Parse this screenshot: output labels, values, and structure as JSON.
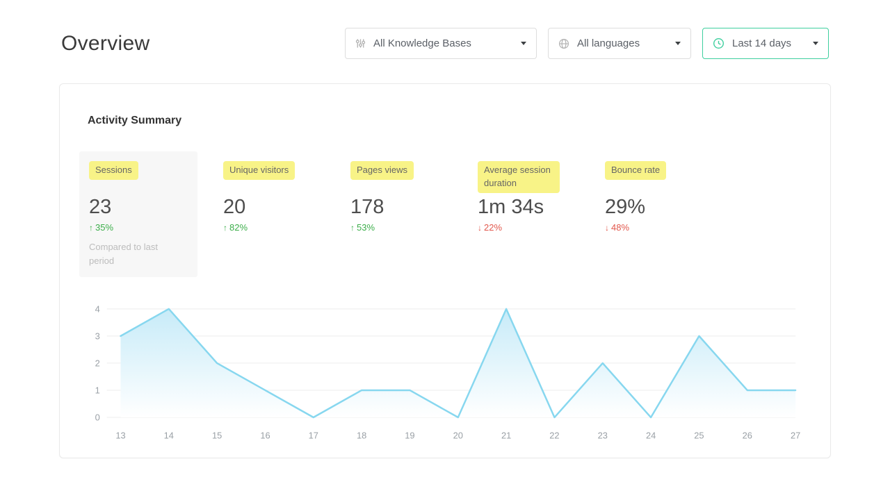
{
  "page": {
    "title": "Overview"
  },
  "filters": {
    "knowledge_bases": {
      "label": "All Knowledge Bases",
      "icon": "sliders-icon"
    },
    "languages": {
      "label": "All languages",
      "icon": "globe-icon"
    },
    "date_range": {
      "label": "Last 14 days",
      "icon": "clock-icon",
      "active": true
    }
  },
  "card": {
    "title": "Activity Summary"
  },
  "metrics": [
    {
      "label": "Sessions",
      "value": "23",
      "delta": "35%",
      "direction": "up",
      "note": "Compared to last period",
      "highlighted_tile": true
    },
    {
      "label": "Unique visitors",
      "value": "20",
      "delta": "82%",
      "direction": "up"
    },
    {
      "label": "Pages views",
      "value": "178",
      "delta": "53%",
      "direction": "up"
    },
    {
      "label": "Average session duration",
      "value": "1m 34s",
      "delta": "22%",
      "direction": "down"
    },
    {
      "label": "Bounce rate",
      "value": "29%",
      "delta": "48%",
      "direction": "down"
    }
  ],
  "chart_data": {
    "type": "area",
    "title": "",
    "x": [
      13,
      14,
      15,
      16,
      17,
      18,
      19,
      20,
      21,
      22,
      23,
      24,
      25,
      26,
      27
    ],
    "values": [
      3,
      4,
      2,
      1,
      0,
      1,
      1,
      0,
      4,
      0,
      2,
      0,
      3,
      1,
      1
    ],
    "xlabel": "",
    "ylabel": "",
    "ylim": [
      0,
      4
    ],
    "yticks": [
      0,
      1,
      2,
      3,
      4
    ],
    "grid": true,
    "legend": "none",
    "line_color": "#87d7ef",
    "fill_from": "#c7ebf8",
    "fill_to": "#ffffff"
  },
  "colors": {
    "accent_green": "#3ecf9e",
    "delta_up": "#3cae4a",
    "delta_down": "#e2574c",
    "highlight_yellow": "#f8f387"
  },
  "icons": {
    "knowledge_bases": "sliders-icon",
    "languages": "globe-icon",
    "date_range": "clock-icon",
    "dropdown_caret": "chevron-down-icon",
    "up": "arrow-up-icon",
    "down": "arrow-down-icon"
  }
}
